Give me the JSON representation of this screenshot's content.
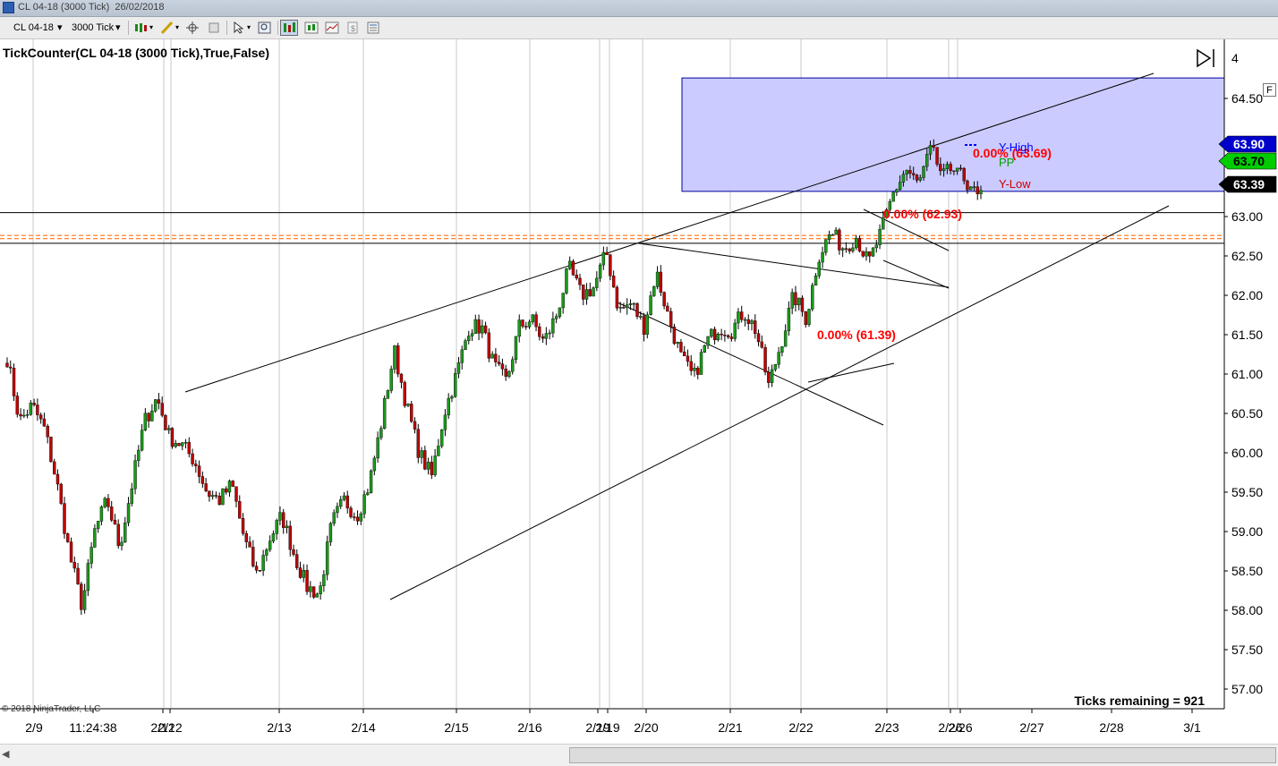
{
  "window": {
    "title": "CL 04-18 (3000 Tick)  26/02/2018"
  },
  "toolbar": {
    "instrument": "CL 04-18",
    "interval": "3000 Tick"
  },
  "chart_data": {
    "type": "candlestick",
    "indicator_label": "TickCounter(CL 04-18 (3000 Tick),True,False)",
    "copyright": "© 2018 NinjaTrader, LLC",
    "ticks_remaining": "Ticks remaining = 921",
    "ylim": [
      56.85,
      65.05
    ],
    "y_ticks": [
      "57.00",
      "57.50",
      "58.00",
      "58.50",
      "59.00",
      "59.50",
      "60.00",
      "60.50",
      "61.00",
      "61.50",
      "62.00",
      "62.50",
      "63.00",
      "64.50"
    ],
    "y_tick_values": [
      57.0,
      57.5,
      58.0,
      58.5,
      59.0,
      59.5,
      60.0,
      60.5,
      61.0,
      61.5,
      62.0,
      62.5,
      63.0,
      64.5
    ],
    "y_tick_partial": "4",
    "x_labels": [
      "2/9",
      "11:24:38",
      "2/12",
      "2/13",
      "2/14",
      "2/15",
      "2/16",
      "2/19",
      "2/20",
      "2/21",
      "2/22",
      "2/23",
      "2/26",
      "2/27",
      "2/28",
      "3/1"
    ],
    "x_label_overlaps": [
      "2/12",
      "2/19",
      "2/26"
    ],
    "price_badges": [
      {
        "label": "63.90",
        "value": 63.9,
        "color": "#0000cc"
      },
      {
        "label": "63.70",
        "value": 63.7,
        "color": "#00cc00"
      },
      {
        "label": "63.39",
        "value": 63.39,
        "color": "#000000"
      }
    ],
    "pivot_labels": [
      {
        "label": "Y-High",
        "color": "#0000ff"
      },
      {
        "label": "PP",
        "color": "#00a000"
      },
      {
        "label": "Y-Low",
        "color": "#cc0000"
      }
    ],
    "fib_labels": [
      {
        "label": "0.00% (63.69)",
        "value": 63.69
      },
      {
        "label": "0.00% (62.93)",
        "value": 62.93
      },
      {
        "label": "0.00% (61.39)",
        "value": 61.39
      }
    ],
    "horizontal_lines": [
      63.05,
      62.66
    ],
    "dashed_lines": [
      62.76,
      62.72
    ],
    "zone": {
      "top": 64.76,
      "bottom": 63.32,
      "color": "#c8c8ff"
    },
    "price_path": [
      [
        "2/9",
        61.2
      ],
      [
        "2/9",
        60.4
      ],
      [
        "2/9",
        60.6
      ],
      [
        "2/9",
        60.3
      ],
      [
        "2/12",
        59.6
      ],
      [
        "2/12",
        58.7
      ],
      [
        "2/12",
        58.05
      ],
      [
        "2/12",
        59.0
      ],
      [
        "2/12",
        59.4
      ],
      [
        "2/12",
        58.8
      ],
      [
        "2/12",
        59.6
      ],
      [
        "2/12",
        60.4
      ],
      [
        "2/12",
        60.7
      ],
      [
        "2/12",
        60.2
      ],
      [
        "2/12",
        60.1
      ],
      [
        "2/13",
        59.9
      ],
      [
        "2/13",
        59.5
      ],
      [
        "2/13",
        59.4
      ],
      [
        "2/13",
        59.6
      ],
      [
        "2/13",
        58.9
      ],
      [
        "2/13",
        58.45
      ],
      [
        "2/13",
        58.9
      ],
      [
        "2/14",
        59.2
      ],
      [
        "2/14",
        58.7
      ],
      [
        "2/14",
        58.3
      ],
      [
        "2/14",
        58.2
      ],
      [
        "2/14",
        59.1
      ],
      [
        "2/14",
        59.4
      ],
      [
        "2/14",
        59.2
      ],
      [
        "2/14",
        59.6
      ],
      [
        "2/15",
        60.4
      ],
      [
        "2/15",
        61.3
      ],
      [
        "2/15",
        60.6
      ],
      [
        "2/15",
        60.0
      ],
      [
        "2/15",
        59.7
      ],
      [
        "2/15",
        60.5
      ],
      [
        "2/15",
        61.0
      ],
      [
        "2/15",
        61.6
      ],
      [
        "2/16",
        61.6
      ],
      [
        "2/16",
        61.1
      ],
      [
        "2/16",
        60.9
      ],
      [
        "2/16",
        61.6
      ],
      [
        "2/16",
        61.7
      ],
      [
        "2/16",
        61.4
      ],
      [
        "2/16",
        61.75
      ],
      [
        "2/19",
        62.35
      ],
      [
        "2/19",
        62.0
      ],
      [
        "2/19",
        62.1
      ],
      [
        "2/20",
        62.55
      ],
      [
        "2/20",
        61.8
      ],
      [
        "2/20",
        61.9
      ],
      [
        "2/20",
        61.6
      ],
      [
        "2/20",
        62.3
      ],
      [
        "2/20",
        61.7
      ],
      [
        "2/21",
        61.2
      ],
      [
        "2/21",
        60.95
      ],
      [
        "2/21",
        61.4
      ],
      [
        "2/21",
        61.6
      ],
      [
        "2/21",
        61.55
      ],
      [
        "2/21",
        61.8
      ],
      [
        "2/21",
        61.55
      ],
      [
        "2/22",
        60.85
      ],
      [
        "2/22",
        61.4
      ],
      [
        "2/22",
        62.0
      ],
      [
        "2/22",
        61.7
      ],
      [
        "2/22",
        62.5
      ],
      [
        "2/22",
        62.8
      ],
      [
        "2/23",
        62.6
      ],
      [
        "2/23",
        62.75
      ],
      [
        "2/23",
        62.4
      ],
      [
        "2/23",
        62.8
      ],
      [
        "2/23",
        63.3
      ],
      [
        "2/23",
        63.6
      ],
      [
        "2/26",
        63.4
      ],
      [
        "2/26",
        63.85
      ],
      [
        "2/26",
        63.5
      ],
      [
        "2/26",
        63.7
      ],
      [
        "2/26",
        63.25
      ],
      [
        "2/26",
        63.39
      ]
    ]
  }
}
